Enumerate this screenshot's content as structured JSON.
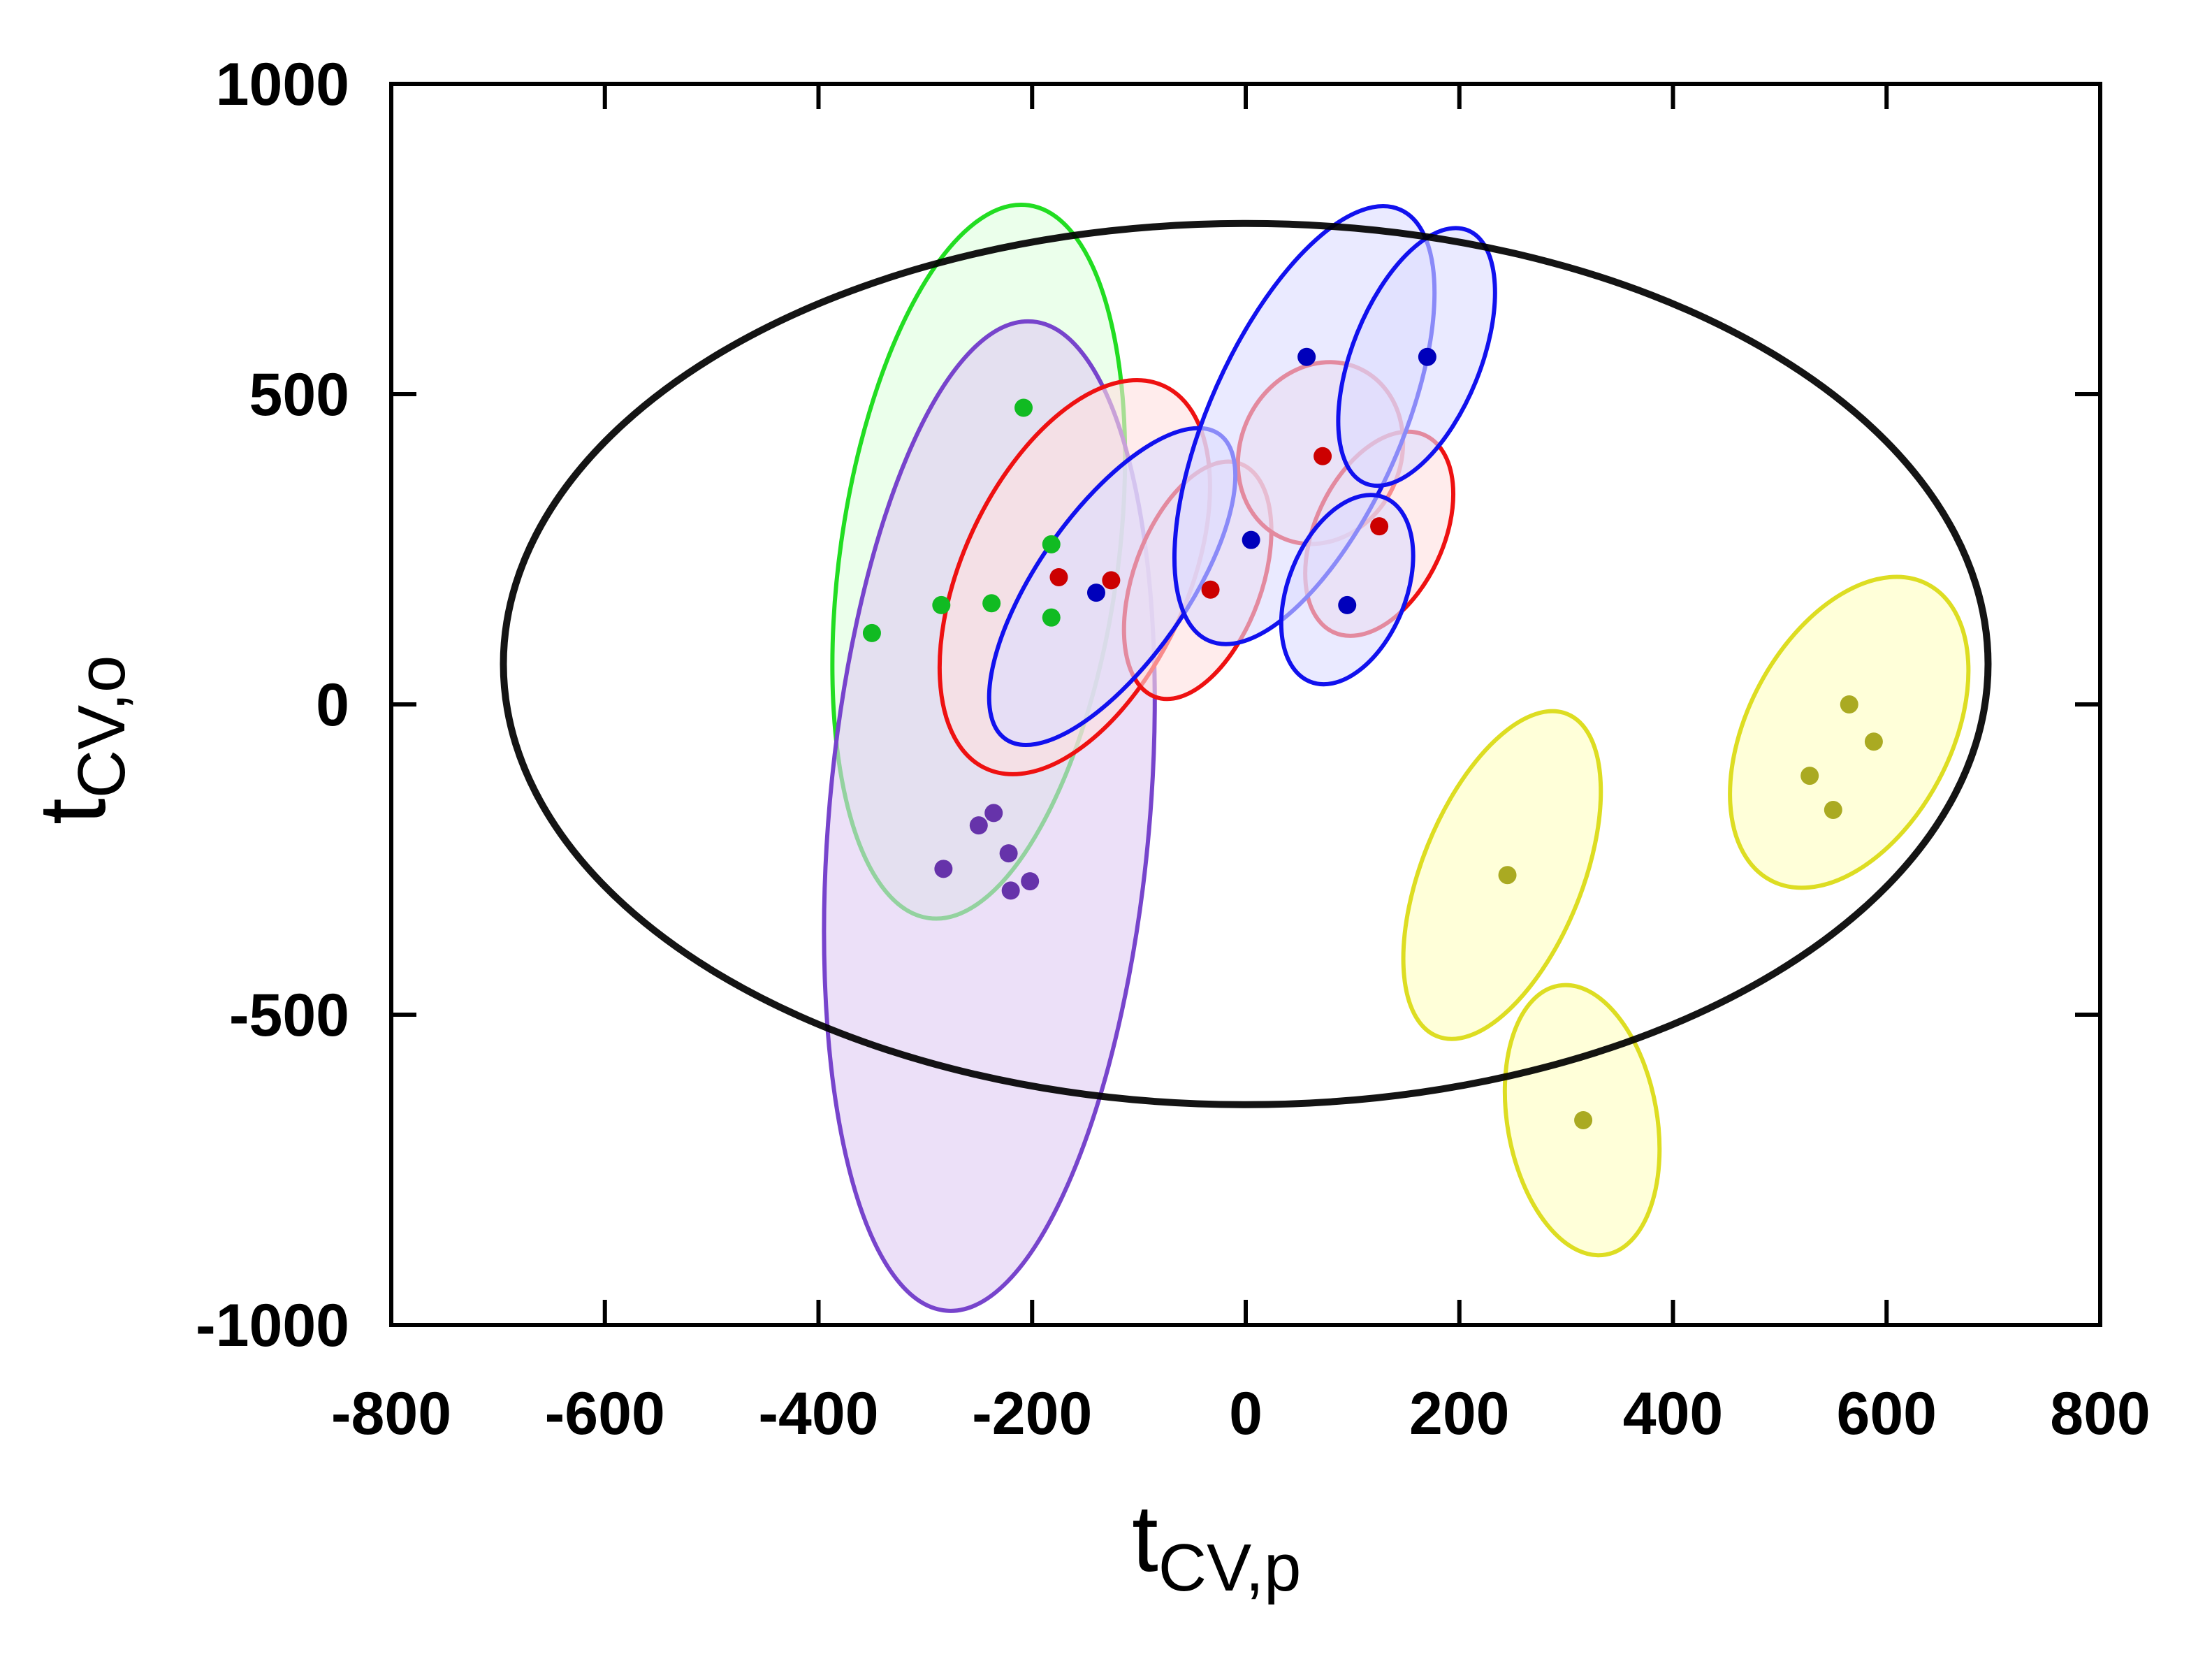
{
  "chart_data": {
    "type": "scatter",
    "title": "",
    "xlabel": "t",
    "xlabel_sub": "CV,p",
    "ylabel": "t",
    "ylabel_sub": "CV,o",
    "xlim": [
      -800,
      800
    ],
    "ylim": [
      -1000,
      1000
    ],
    "xticks": [
      -800,
      -600,
      -400,
      -200,
      0,
      200,
      400,
      600,
      800
    ],
    "yticks": [
      -1000,
      -500,
      0,
      500,
      1000
    ],
    "xtick_labels": [
      "-800",
      "-600",
      "-400",
      "-200",
      "0",
      "200",
      "400",
      "600",
      "800"
    ],
    "ytick_labels": [
      "-1000",
      "-500",
      "0",
      "500",
      "1000"
    ],
    "grid": false,
    "reference_ellipse": {
      "cx": 0,
      "cy": 65,
      "rx": 695,
      "ry": 710,
      "color": "#000000"
    },
    "series": [
      {
        "color": "#22dd22",
        "point_color": "#11bb22",
        "fill": "#ddffdd",
        "points": [
          [
            -350,
            115
          ],
          [
            -285,
            160
          ],
          [
            -238,
            163
          ],
          [
            -182,
            258
          ],
          [
            -182,
            140
          ],
          [
            -208,
            478
          ]
        ],
        "regions": [
          {
            "cx": -250,
            "cy": 230,
            "rx": 130,
            "ry": 580,
            "rot": 8
          }
        ]
      },
      {
        "color": "#7744cc",
        "point_color": "#6633aa",
        "fill": "#e0ccf4",
        "points": [
          [
            -283,
            -265
          ],
          [
            -250,
            -195
          ],
          [
            -236,
            -175
          ],
          [
            -222,
            -240
          ],
          [
            -220,
            -300
          ],
          [
            -202,
            -285
          ]
        ],
        "regions": [
          {
            "cx": -240,
            "cy": -180,
            "rx": 150,
            "ry": 800,
            "rot": 5
          }
        ]
      },
      {
        "color": "#ee1111",
        "point_color": "#cc0000",
        "fill": "#ffe0e0",
        "points": [
          [
            -175,
            205
          ],
          [
            -126,
            200
          ],
          [
            -33,
            185
          ],
          [
            72,
            400
          ],
          [
            125,
            287
          ]
        ],
        "regions": [
          {
            "cx": -160,
            "cy": 205,
            "rx": 105,
            "ry": 340,
            "rot": 25
          },
          {
            "cx": -45,
            "cy": 200,
            "rx": 60,
            "ry": 200,
            "rot": 20
          },
          {
            "cx": 70,
            "cy": 405,
            "rx": 75,
            "ry": 150,
            "rot": 25
          },
          {
            "cx": 125,
            "cy": 275,
            "rx": 60,
            "ry": 175,
            "rot": 25
          }
        ]
      },
      {
        "color": "#1111ee",
        "point_color": "#0000bb",
        "fill": "#dcdcff",
        "points": [
          [
            -140,
            180
          ],
          [
            5,
            265
          ],
          [
            57,
            560
          ],
          [
            170,
            560
          ],
          [
            95,
            160
          ]
        ],
        "regions": [
          {
            "cx": -125,
            "cy": 190,
            "rx": 70,
            "ry": 300,
            "rot": 35
          },
          {
            "cx": 55,
            "cy": 450,
            "rx": 90,
            "ry": 380,
            "rot": 24
          },
          {
            "cx": 160,
            "cy": 560,
            "rx": 60,
            "ry": 220,
            "rot": 22
          },
          {
            "cx": 95,
            "cy": 185,
            "rx": 55,
            "ry": 160,
            "rot": 22
          }
        ]
      },
      {
        "color": "#dddd22",
        "point_color": "#aaaa22",
        "fill": "#ffffc0",
        "points": [
          [
            245,
            -275
          ],
          [
            316,
            -670
          ],
          [
            528,
            -115
          ],
          [
            550,
            -170
          ],
          [
            565,
            0
          ],
          [
            588,
            -60
          ]
        ],
        "regions": [
          {
            "cx": 240,
            "cy": -275,
            "rx": 75,
            "ry": 280,
            "rot": 22
          },
          {
            "cx": 315,
            "cy": -670,
            "rx": 70,
            "ry": 220,
            "rot": -10
          },
          {
            "cx": 565,
            "cy": -45,
            "rx": 95,
            "ry": 270,
            "rot": 28
          }
        ]
      }
    ]
  }
}
